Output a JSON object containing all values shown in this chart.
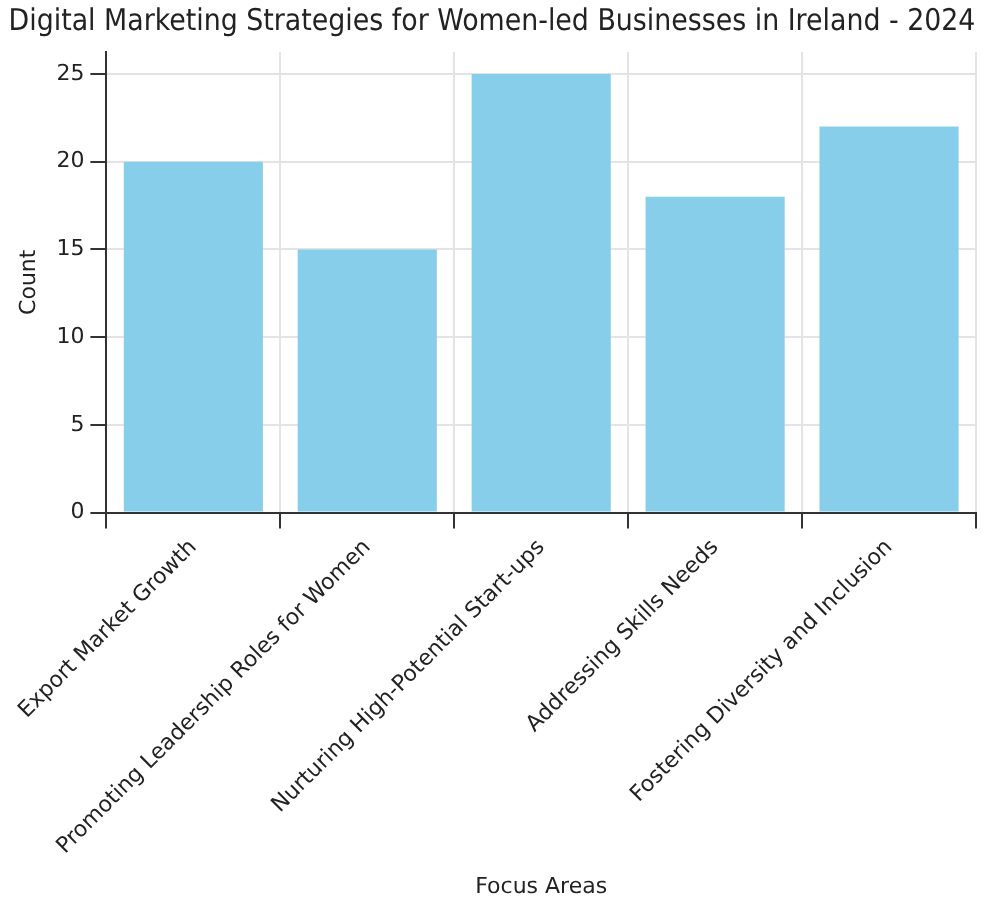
{
  "chart_data": {
    "type": "bar",
    "title": "Digital Marketing Strategies for Women-led Businesses in Ireland - 2024",
    "xlabel": "Focus Areas",
    "ylabel": "Count",
    "categories": [
      "Export Market Growth",
      "Promoting Leadership Roles for Women",
      "Nurturing High-Potential Start-ups",
      "Addressing Skills Needs",
      "Fostering Diversity and Inclusion"
    ],
    "values": [
      20,
      15,
      25,
      18,
      22
    ],
    "color": "#87ceeb",
    "ylim": [
      0,
      26.25
    ],
    "yticks": [
      0,
      5,
      10,
      15,
      20,
      25
    ],
    "grid": true
  }
}
